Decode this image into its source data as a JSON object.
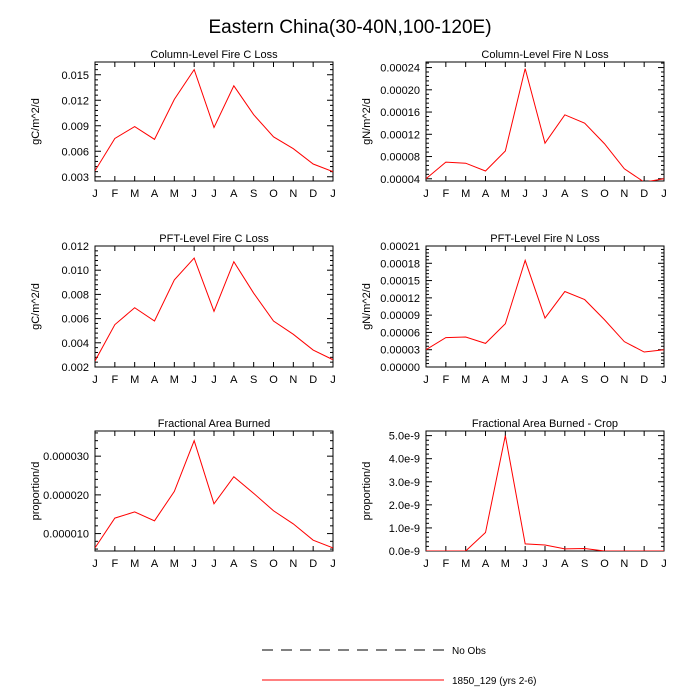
{
  "title": "Eastern China(30-40N,100-120E)",
  "months": [
    "J",
    "F",
    "M",
    "A",
    "M",
    "J",
    "J",
    "A",
    "S",
    "O",
    "N",
    "D",
    "J"
  ],
  "legend": {
    "obs_label": "No Obs",
    "model_label": "1850_129 (yrs 2-6)",
    "obs_color": "#000000",
    "model_color": "#ff0000"
  },
  "chart_data": [
    {
      "type": "line",
      "title": "Column-Level Fire C Loss",
      "ylabel": "gC/m^2/d",
      "ylim": [
        0.0025,
        0.0165
      ],
      "yticks": [
        0.003,
        0.006,
        0.009,
        0.012,
        0.015
      ],
      "ytick_labels": [
        "0.003",
        "0.006",
        "0.009",
        "0.012",
        "0.015"
      ],
      "series": [
        {
          "name": "1850_129 (yrs 2-6)",
          "values": [
            0.0037,
            0.0075,
            0.0089,
            0.0074,
            0.0121,
            0.0156,
            0.0088,
            0.0137,
            0.0103,
            0.0077,
            0.0063,
            0.0045,
            0.0036
          ]
        }
      ]
    },
    {
      "type": "line",
      "title": "Column-Level Fire N Loss",
      "ylabel": "gN/m^2/d",
      "ylim": [
        3.6e-05,
        0.00025
      ],
      "yticks": [
        4e-05,
        8e-05,
        0.00012,
        0.00016,
        0.0002,
        0.00024
      ],
      "ytick_labels": [
        "0.00004",
        "0.00008",
        "0.00012",
        "0.00016",
        "0.00020",
        "0.00024"
      ],
      "series": [
        {
          "name": "1850_129 (yrs 2-6)",
          "values": [
            4e-05,
            7e-05,
            6.8e-05,
            5.4e-05,
            9e-05,
            0.000238,
            0.000104,
            0.000155,
            0.00014,
            0.000103,
            5.8e-05,
            3.4e-05,
            4e-05
          ]
        }
      ]
    },
    {
      "type": "line",
      "title": "PFT-Level Fire C Loss",
      "ylabel": "gC/m^2/d",
      "ylim": [
        0.002,
        0.012
      ],
      "yticks": [
        0.002,
        0.004,
        0.006,
        0.008,
        0.01,
        0.012
      ],
      "ytick_labels": [
        "0.002",
        "0.004",
        "0.006",
        "0.008",
        "0.010",
        "0.012"
      ],
      "series": [
        {
          "name": "1850_129 (yrs 2-6)",
          "values": [
            0.0025,
            0.0055,
            0.0069,
            0.0058,
            0.0092,
            0.011,
            0.0066,
            0.0107,
            0.0081,
            0.0058,
            0.0047,
            0.0034,
            0.0026
          ]
        }
      ]
    },
    {
      "type": "line",
      "title": "PFT-Level Fire N Loss",
      "ylabel": "gN/m^2/d",
      "ylim": [
        0.0,
        0.00021
      ],
      "yticks": [
        0.0,
        3e-05,
        6e-05,
        9e-05,
        0.00012,
        0.00015,
        0.00018,
        0.00021
      ],
      "ytick_labels": [
        "0.00000",
        "0.00003",
        "0.00006",
        "0.00009",
        "0.00012",
        "0.00015",
        "0.00018",
        "0.00021"
      ],
      "series": [
        {
          "name": "1850_129 (yrs 2-6)",
          "values": [
            3e-05,
            5.1e-05,
            5.2e-05,
            4.1e-05,
            7.5e-05,
            0.000185,
            8.5e-05,
            0.000131,
            0.000117,
            8.2e-05,
            4.4e-05,
            2.6e-05,
            3e-05
          ]
        }
      ]
    },
    {
      "type": "line",
      "title": "Fractional Area Burned",
      "ylabel": "proportion/d",
      "ylim": [
        5.5e-06,
        3.65e-05
      ],
      "yticks": [
        1e-05,
        2e-05,
        3e-05
      ],
      "ytick_labels": [
        "0.000010",
        "0.000020",
        "0.000030"
      ],
      "series": [
        {
          "name": "1850_129 (yrs 2-6)",
          "values": [
            6.3e-06,
            1.4e-05,
            1.56e-05,
            1.33e-05,
            2.09e-05,
            3.4e-05,
            1.77e-05,
            2.47e-05,
            2.04e-05,
            1.59e-05,
            1.25e-05,
            8.3e-06,
            6.3e-06
          ]
        }
      ]
    },
    {
      "type": "line",
      "title": "Fractional Area Burned - Crop",
      "ylabel": "proportion/d",
      "ylim": [
        0.0,
        5.2e-09
      ],
      "yticks": [
        0.0,
        1e-09,
        2e-09,
        3e-09,
        4e-09,
        5e-09
      ],
      "ytick_labels": [
        "0.0e-9",
        "1.0e-9",
        "2.0e-9",
        "3.0e-9",
        "4.0e-9",
        "5.0e-9"
      ],
      "series": [
        {
          "name": "1850_129 (yrs 2-6)",
          "values": [
            0.0,
            0.0,
            0.0,
            8e-10,
            5e-09,
            3.1e-10,
            2.6e-10,
            9e-11,
            1.1e-10,
            0.0,
            0.0,
            0.0,
            0.0
          ]
        }
      ]
    }
  ]
}
